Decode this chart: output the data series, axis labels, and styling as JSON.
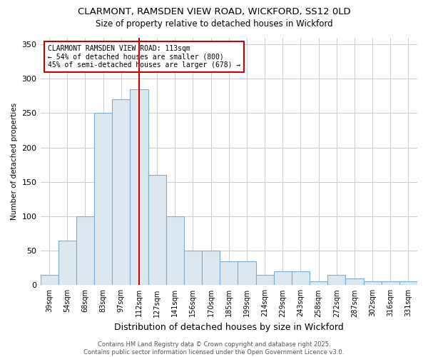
{
  "title": "CLARMONT, RAMSDEN VIEW ROAD, WICKFORD, SS12 0LD",
  "subtitle": "Size of property relative to detached houses in Wickford",
  "xlabel": "Distribution of detached houses by size in Wickford",
  "ylabel": "Number of detached properties",
  "bar_color": "#dce8f0",
  "bar_edgecolor": "#7aadce",
  "vline_color": "#cc0000",
  "vline_x": 5,
  "annotation_text": "CLARMONT RAMSDEN VIEW ROAD: 113sqm\n← 54% of detached houses are smaller (800)\n45% of semi-detached houses are larger (678) →",
  "annotation_box_color": "#ffffff",
  "annotation_box_edgecolor": "#cc0000",
  "categories": [
    "39sqm",
    "54sqm",
    "68sqm",
    "83sqm",
    "97sqm",
    "112sqm",
    "127sqm",
    "141sqm",
    "156sqm",
    "170sqm",
    "185sqm",
    "199sqm",
    "214sqm",
    "229sqm",
    "243sqm",
    "258sqm",
    "272sqm",
    "287sqm",
    "302sqm",
    "316sqm",
    "331sqm"
  ],
  "values": [
    15,
    65,
    100,
    250,
    270,
    285,
    160,
    100,
    50,
    50,
    35,
    35,
    15,
    20,
    20,
    5,
    15,
    10,
    5,
    5,
    5
  ],
  "ylim": [
    0,
    360
  ],
  "yticks": [
    0,
    50,
    100,
    150,
    200,
    250,
    300,
    350
  ],
  "footer": "Contains HM Land Registry data © Crown copyright and database right 2025.\nContains public sector information licensed under the Open Government Licence v3.0.",
  "background_color": "#ffffff",
  "grid_color": "#cccccc"
}
